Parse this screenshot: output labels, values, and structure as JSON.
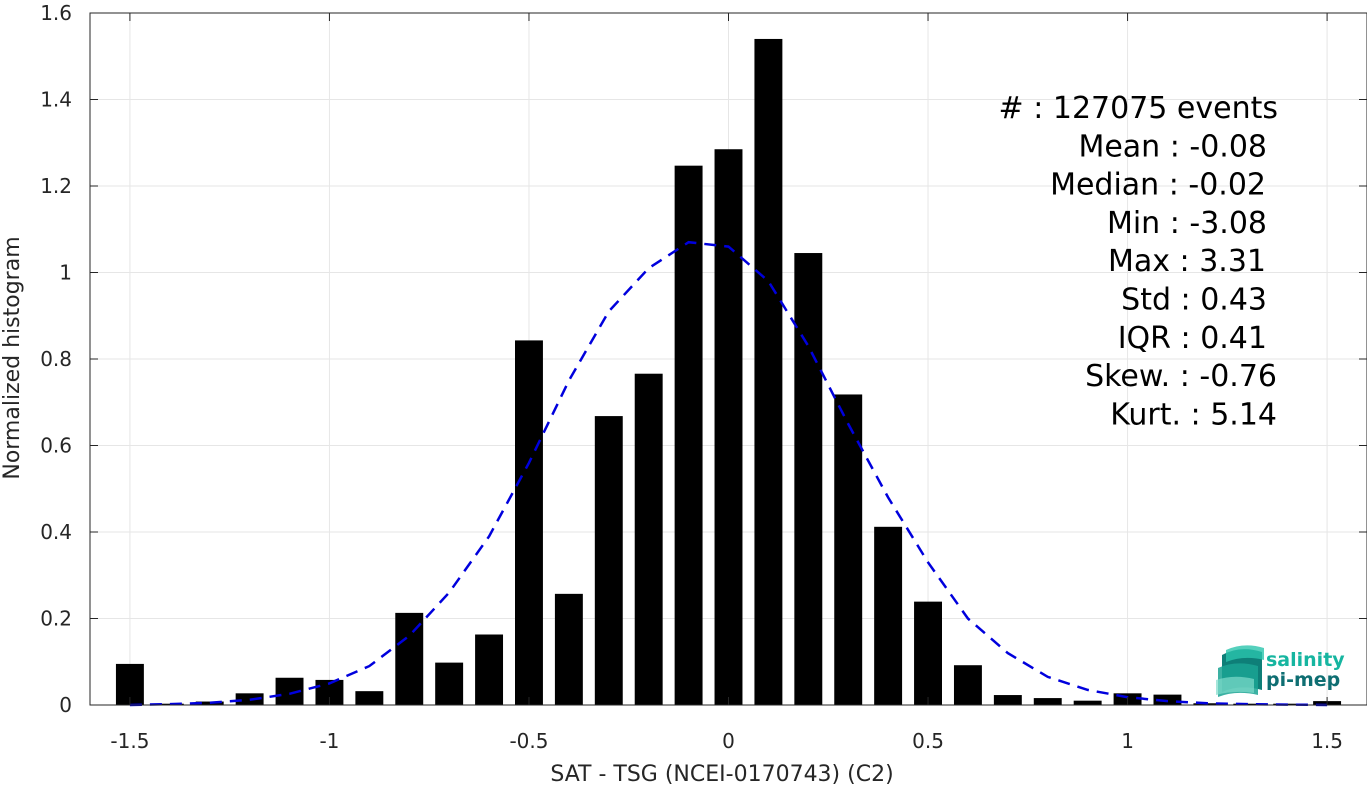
{
  "chart_data": {
    "type": "bar",
    "xlabel": "SAT - TSG (NCEI-0170743) (C2)",
    "ylabel": "Normalized histogram",
    "xlim": [
      -1.6,
      1.6
    ],
    "ylim": [
      0,
      1.6
    ],
    "xticks": [
      "-1.5",
      "-1",
      "-0.5",
      "0",
      "0.5",
      "1",
      "1.5"
    ],
    "xtick_values": [
      -1.5,
      -1,
      -0.5,
      0,
      0.5,
      1,
      1.5
    ],
    "yticks": [
      "0",
      "0.2",
      "0.4",
      "0.6",
      "0.8",
      "1",
      "1.2",
      "1.4",
      "1.6"
    ],
    "ytick_values": [
      0,
      0.2,
      0.4,
      0.6,
      0.8,
      1,
      1.2,
      1.4,
      1.6
    ],
    "grid": true,
    "bar_width": 0.07,
    "bar_color": "#000000",
    "bars": {
      "x": [
        -1.5,
        -1.4,
        -1.3,
        -1.2,
        -1.1,
        -1.0,
        -0.9,
        -0.8,
        -0.7,
        -0.6,
        -0.5,
        -0.4,
        -0.3,
        -0.2,
        -0.1,
        0.0,
        0.1,
        0.2,
        0.3,
        0.4,
        0.5,
        0.6,
        0.7,
        0.8,
        0.9,
        1.0,
        1.1,
        1.2,
        1.3,
        1.4,
        1.5
      ],
      "values": [
        0.095,
        0.003,
        0.008,
        0.027,
        0.063,
        0.058,
        0.032,
        0.213,
        0.098,
        0.163,
        0.843,
        0.257,
        0.668,
        0.766,
        1.247,
        1.285,
        1.54,
        1.045,
        0.718,
        0.412,
        0.239,
        0.092,
        0.023,
        0.016,
        0.01,
        0.027,
        0.024,
        0.004,
        0.003,
        0.003,
        0.009
      ]
    },
    "fit_curve": {
      "style": "dashed",
      "color": "#0000dd",
      "x": [
        -1.5,
        -1.4,
        -1.3,
        -1.2,
        -1.1,
        -1.0,
        -0.9,
        -0.8,
        -0.7,
        -0.6,
        -0.5,
        -0.4,
        -0.3,
        -0.2,
        -0.1,
        0.0,
        0.1,
        0.2,
        0.3,
        0.4,
        0.5,
        0.6,
        0.7,
        0.8,
        0.9,
        1.0,
        1.1,
        1.2,
        1.3,
        1.4,
        1.5
      ],
      "values": [
        0.0,
        0.002,
        0.005,
        0.012,
        0.026,
        0.05,
        0.09,
        0.16,
        0.26,
        0.39,
        0.56,
        0.75,
        0.91,
        1.01,
        1.07,
        1.06,
        0.98,
        0.83,
        0.65,
        0.48,
        0.33,
        0.2,
        0.12,
        0.065,
        0.035,
        0.018,
        0.009,
        0.004,
        0.002,
        0.001,
        0.0
      ]
    },
    "annotations": [
      "#  : 127075 events",
      "Mean : -0.08",
      "Median : -0.02",
      "Min : -3.08",
      "Max : 3.31",
      "Std : 0.43",
      "IQR : 0.41",
      "Skew. : -0.76",
      "Kurt. : 5.14"
    ]
  },
  "logo": {
    "line1": "salinity",
    "line2": "pi-mep",
    "color1": "#16b5a0",
    "color2": "#0e6e72"
  }
}
